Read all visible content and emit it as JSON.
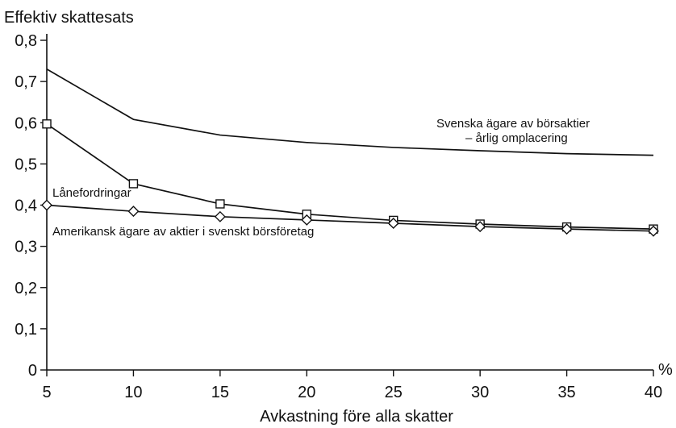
{
  "chart_data": {
    "type": "line",
    "ylabel": "Effektiv skattesats",
    "xlabel": "Avkastning före alla skatter",
    "x_unit": "%",
    "x": [
      5,
      10,
      15,
      20,
      25,
      30,
      35,
      40
    ],
    "xlim": [
      5,
      40
    ],
    "ylim": [
      0,
      0.8
    ],
    "xticks": [
      5,
      10,
      15,
      20,
      25,
      30,
      35,
      40
    ],
    "yticks": [
      0,
      0.1,
      0.2,
      0.3,
      0.4,
      0.5,
      0.6,
      0.7,
      0.8
    ],
    "xtick_labels": [
      "5",
      "10",
      "15",
      "20",
      "25",
      "30",
      "35",
      "40"
    ],
    "ytick_labels": [
      "0",
      "0,1",
      "0,2",
      "0,3",
      "0,4",
      "0,5",
      "0,6",
      "0,7",
      "0,8"
    ],
    "grid": false,
    "series": [
      {
        "name": "Svenska ägare av börsaktier – årlig omplacering",
        "marker": "none",
        "values": [
          0.73,
          0.608,
          0.57,
          0.552,
          0.54,
          0.532,
          0.525,
          0.521
        ]
      },
      {
        "name": "Lånefordringar",
        "marker": "square",
        "values": [
          0.597,
          0.452,
          0.403,
          0.378,
          0.363,
          0.354,
          0.347,
          0.342
        ]
      },
      {
        "name": "Amerikansk ägare av aktier i svenskt börsföretag",
        "marker": "diamond",
        "values": [
          0.4,
          0.385,
          0.372,
          0.364,
          0.356,
          0.348,
          0.342,
          0.337
        ]
      }
    ],
    "annotations": {
      "swedish_line1": "Svenska ägare av börsaktier",
      "swedish_line2": "– årlig omplacering",
      "loans": "Lånefordringar",
      "american": "Amerikansk ägare av aktier i svenskt börsföretag"
    },
    "colors": {
      "line": "#111111",
      "marker_fill": "#ffffff",
      "background": "#ffffff"
    }
  }
}
